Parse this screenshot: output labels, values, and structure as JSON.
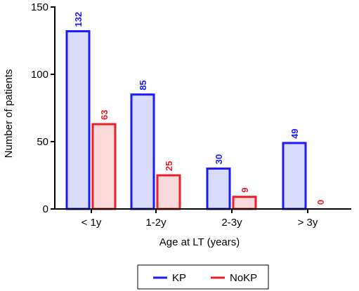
{
  "chart_data": {
    "type": "bar",
    "categories": [
      "< 1y",
      "1-2y",
      "2-3y",
      "> 3y"
    ],
    "series": [
      {
        "name": "KP",
        "values": [
          132,
          85,
          30,
          49
        ],
        "stroke": "#1a1aff",
        "fill": "#d9dcfb"
      },
      {
        "name": "NoKP",
        "values": [
          63,
          25,
          9,
          0
        ],
        "stroke": "#e8202a",
        "fill": "#fbd9db"
      }
    ],
    "xlabel": "Age at LT (years)",
    "ylabel": "Number of patients",
    "ylim": [
      0,
      150
    ],
    "yticks": [
      0,
      50,
      100,
      150
    ],
    "grid": false,
    "legend_position": "bottom"
  }
}
